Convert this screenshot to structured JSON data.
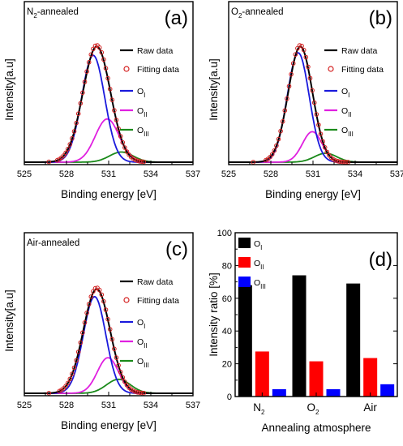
{
  "chart_data": [
    {
      "type": "line",
      "panel_label": "(a)",
      "corner_label": "N2-annealed",
      "corner_label_parts": [
        "N",
        "2",
        "-annealed"
      ],
      "xlabel": "Binding energy [eV]",
      "ylabel": "Intensity[a.u]",
      "xlim": [
        525,
        537
      ],
      "x_ticks": [
        525,
        528,
        531,
        534,
        537
      ],
      "legend_position": "top-right",
      "legend": [
        "Raw data",
        "Fitting data",
        "O_I",
        "O_II",
        "O_III"
      ],
      "series": [
        {
          "name": "Raw data",
          "color": "#000000",
          "style": "line",
          "center": 530.15,
          "height": 0.91,
          "width": 0.98
        },
        {
          "name": "Fitting data",
          "color": "#d42020",
          "style": "open-circles",
          "center": 530.15,
          "height": 0.92,
          "width": 0.98
        },
        {
          "name": "O_I",
          "color": "#1a1adc",
          "style": "line",
          "center": 529.9,
          "height": 0.84,
          "width": 0.82
        },
        {
          "name": "O_II",
          "color": "#e020e0",
          "style": "line",
          "center": 530.9,
          "height": 0.34,
          "width": 0.85
        },
        {
          "name": "O_III",
          "color": "#1a8a1a",
          "style": "line",
          "center": 531.9,
          "height": 0.08,
          "width": 0.85
        }
      ]
    },
    {
      "type": "line",
      "panel_label": "(b)",
      "corner_label": "O2-annealed",
      "corner_label_parts": [
        "O",
        "2",
        "-annealed"
      ],
      "xlabel": "Binding energy [eV]",
      "ylabel": "Intensity[a.u]",
      "xlim": [
        525,
        537
      ],
      "x_ticks": [
        525,
        528,
        531,
        534,
        537
      ],
      "legend_position": "top-right",
      "legend": [
        "Raw data",
        "Fitting data",
        "O_I",
        "O_II",
        "O_III"
      ],
      "series": [
        {
          "name": "Raw data",
          "color": "#000000",
          "style": "line",
          "center": 530.1,
          "height": 0.91,
          "width": 0.86
        },
        {
          "name": "Fitting data",
          "color": "#d42020",
          "style": "open-circles",
          "center": 530.1,
          "height": 0.92,
          "width": 0.86
        },
        {
          "name": "O_I",
          "color": "#1a1adc",
          "style": "line",
          "center": 529.95,
          "height": 0.86,
          "width": 0.78
        },
        {
          "name": "O_II",
          "color": "#e020e0",
          "style": "line",
          "center": 530.95,
          "height": 0.24,
          "width": 0.7
        },
        {
          "name": "O_III",
          "color": "#1a8a1a",
          "style": "line",
          "center": 531.9,
          "height": 0.07,
          "width": 0.8
        }
      ]
    },
    {
      "type": "line",
      "panel_label": "(c)",
      "corner_label": "Air-annealed",
      "corner_label_parts": [
        "Air-annealed",
        "",
        ""
      ],
      "xlabel": "Binding energy [eV]",
      "ylabel": "Intensity[a.u]",
      "xlim": [
        525,
        537
      ],
      "x_ticks": [
        525,
        528,
        531,
        534,
        537
      ],
      "legend_position": "top-right",
      "legend": [
        "Raw data",
        "Fitting data",
        "O_I",
        "O_II",
        "O_III"
      ],
      "series": [
        {
          "name": "Raw data",
          "color": "#000000",
          "style": "line",
          "center": 530.15,
          "height": 0.82,
          "width": 0.95
        },
        {
          "name": "Fitting data",
          "color": "#d42020",
          "style": "open-circles",
          "center": 530.15,
          "height": 0.83,
          "width": 0.95
        },
        {
          "name": "O_I",
          "color": "#1a1adc",
          "style": "line",
          "center": 530.0,
          "height": 0.76,
          "width": 0.8
        },
        {
          "name": "O_II",
          "color": "#e020e0",
          "style": "line",
          "center": 530.95,
          "height": 0.28,
          "width": 0.75
        },
        {
          "name": "O_III",
          "color": "#1a8a1a",
          "style": "line",
          "center": 531.7,
          "height": 0.11,
          "width": 0.85
        }
      ]
    },
    {
      "type": "bar",
      "panel_label": "(d)",
      "xlabel": "Annealing atmosphere",
      "ylabel": "Intensity ratio [%]",
      "ylim": [
        0,
        100
      ],
      "y_ticks": [
        0,
        20,
        40,
        60,
        80,
        100
      ],
      "categories": [
        "N2",
        "O2",
        "Air"
      ],
      "category_parts": [
        [
          "N",
          "2"
        ],
        [
          "O",
          "2"
        ],
        [
          "Air",
          ""
        ]
      ],
      "legend_position": "top-left",
      "series": [
        {
          "name": "O_I",
          "color": "#000000",
          "values": [
            68,
            74,
            69
          ]
        },
        {
          "name": "O_II",
          "color": "#ff0000",
          "values": [
            27.5,
            21.5,
            23.5
          ]
        },
        {
          "name": "O_III",
          "color": "#0000ff",
          "values": [
            4.5,
            4.5,
            7.5
          ]
        }
      ]
    }
  ]
}
